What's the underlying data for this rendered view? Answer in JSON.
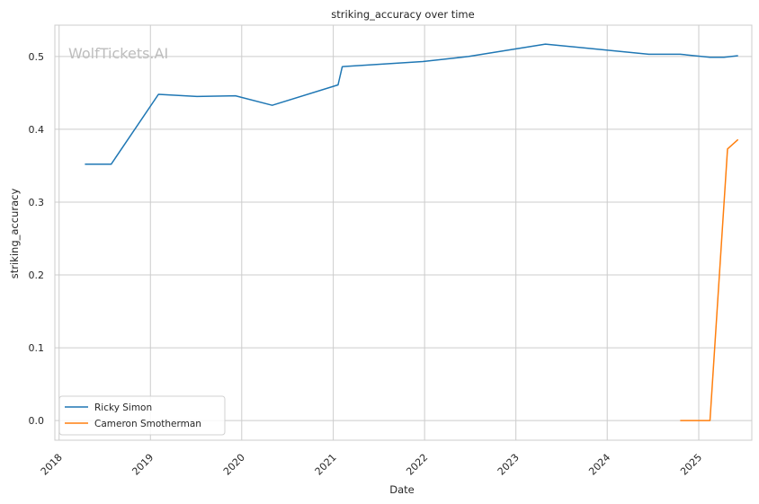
{
  "chart_data": {
    "type": "line",
    "title": "striking_accuracy over time",
    "xlabel": "Date",
    "ylabel": "striking_accuracy",
    "watermark": "WolfTickets.AI",
    "xlim": [
      "2017-12-15",
      "2025-08-01"
    ],
    "ylim": [
      -0.027,
      0.543
    ],
    "x_ticks": [
      "2018",
      "2019",
      "2020",
      "2021",
      "2022",
      "2023",
      "2024",
      "2025"
    ],
    "y_ticks": [
      "0.0",
      "0.1",
      "0.2",
      "0.3",
      "0.4",
      "0.5"
    ],
    "grid": true,
    "legend_position": "lower-left",
    "series": [
      {
        "name": "Ricky Simon",
        "color": "#1f77b4",
        "points": [
          {
            "x": "2018-04-14",
            "y": 0.352
          },
          {
            "x": "2018-07-28",
            "y": 0.352
          },
          {
            "x": "2019-02-02",
            "y": 0.448
          },
          {
            "x": "2019-07-06",
            "y": 0.445
          },
          {
            "x": "2019-12-07",
            "y": 0.446
          },
          {
            "x": "2020-05-02",
            "y": 0.433
          },
          {
            "x": "2021-01-20",
            "y": 0.461
          },
          {
            "x": "2021-02-06",
            "y": 0.486
          },
          {
            "x": "2021-12-25",
            "y": 0.493
          },
          {
            "x": "2022-06-25",
            "y": 0.5
          },
          {
            "x": "2023-04-29",
            "y": 0.517
          },
          {
            "x": "2024-06-15",
            "y": 0.503
          },
          {
            "x": "2024-10-19",
            "y": 0.503
          },
          {
            "x": "2025-02-15",
            "y": 0.499
          },
          {
            "x": "2025-04-12",
            "y": 0.499
          },
          {
            "x": "2025-06-07",
            "y": 0.501
          }
        ]
      },
      {
        "name": "Cameron Smotherman",
        "color": "#ff7f0e",
        "points": [
          {
            "x": "2024-10-19",
            "y": 0.0
          },
          {
            "x": "2025-02-15",
            "y": 0.0
          },
          {
            "x": "2025-04-26",
            "y": 0.373
          },
          {
            "x": "2025-06-07",
            "y": 0.386
          }
        ]
      }
    ]
  }
}
